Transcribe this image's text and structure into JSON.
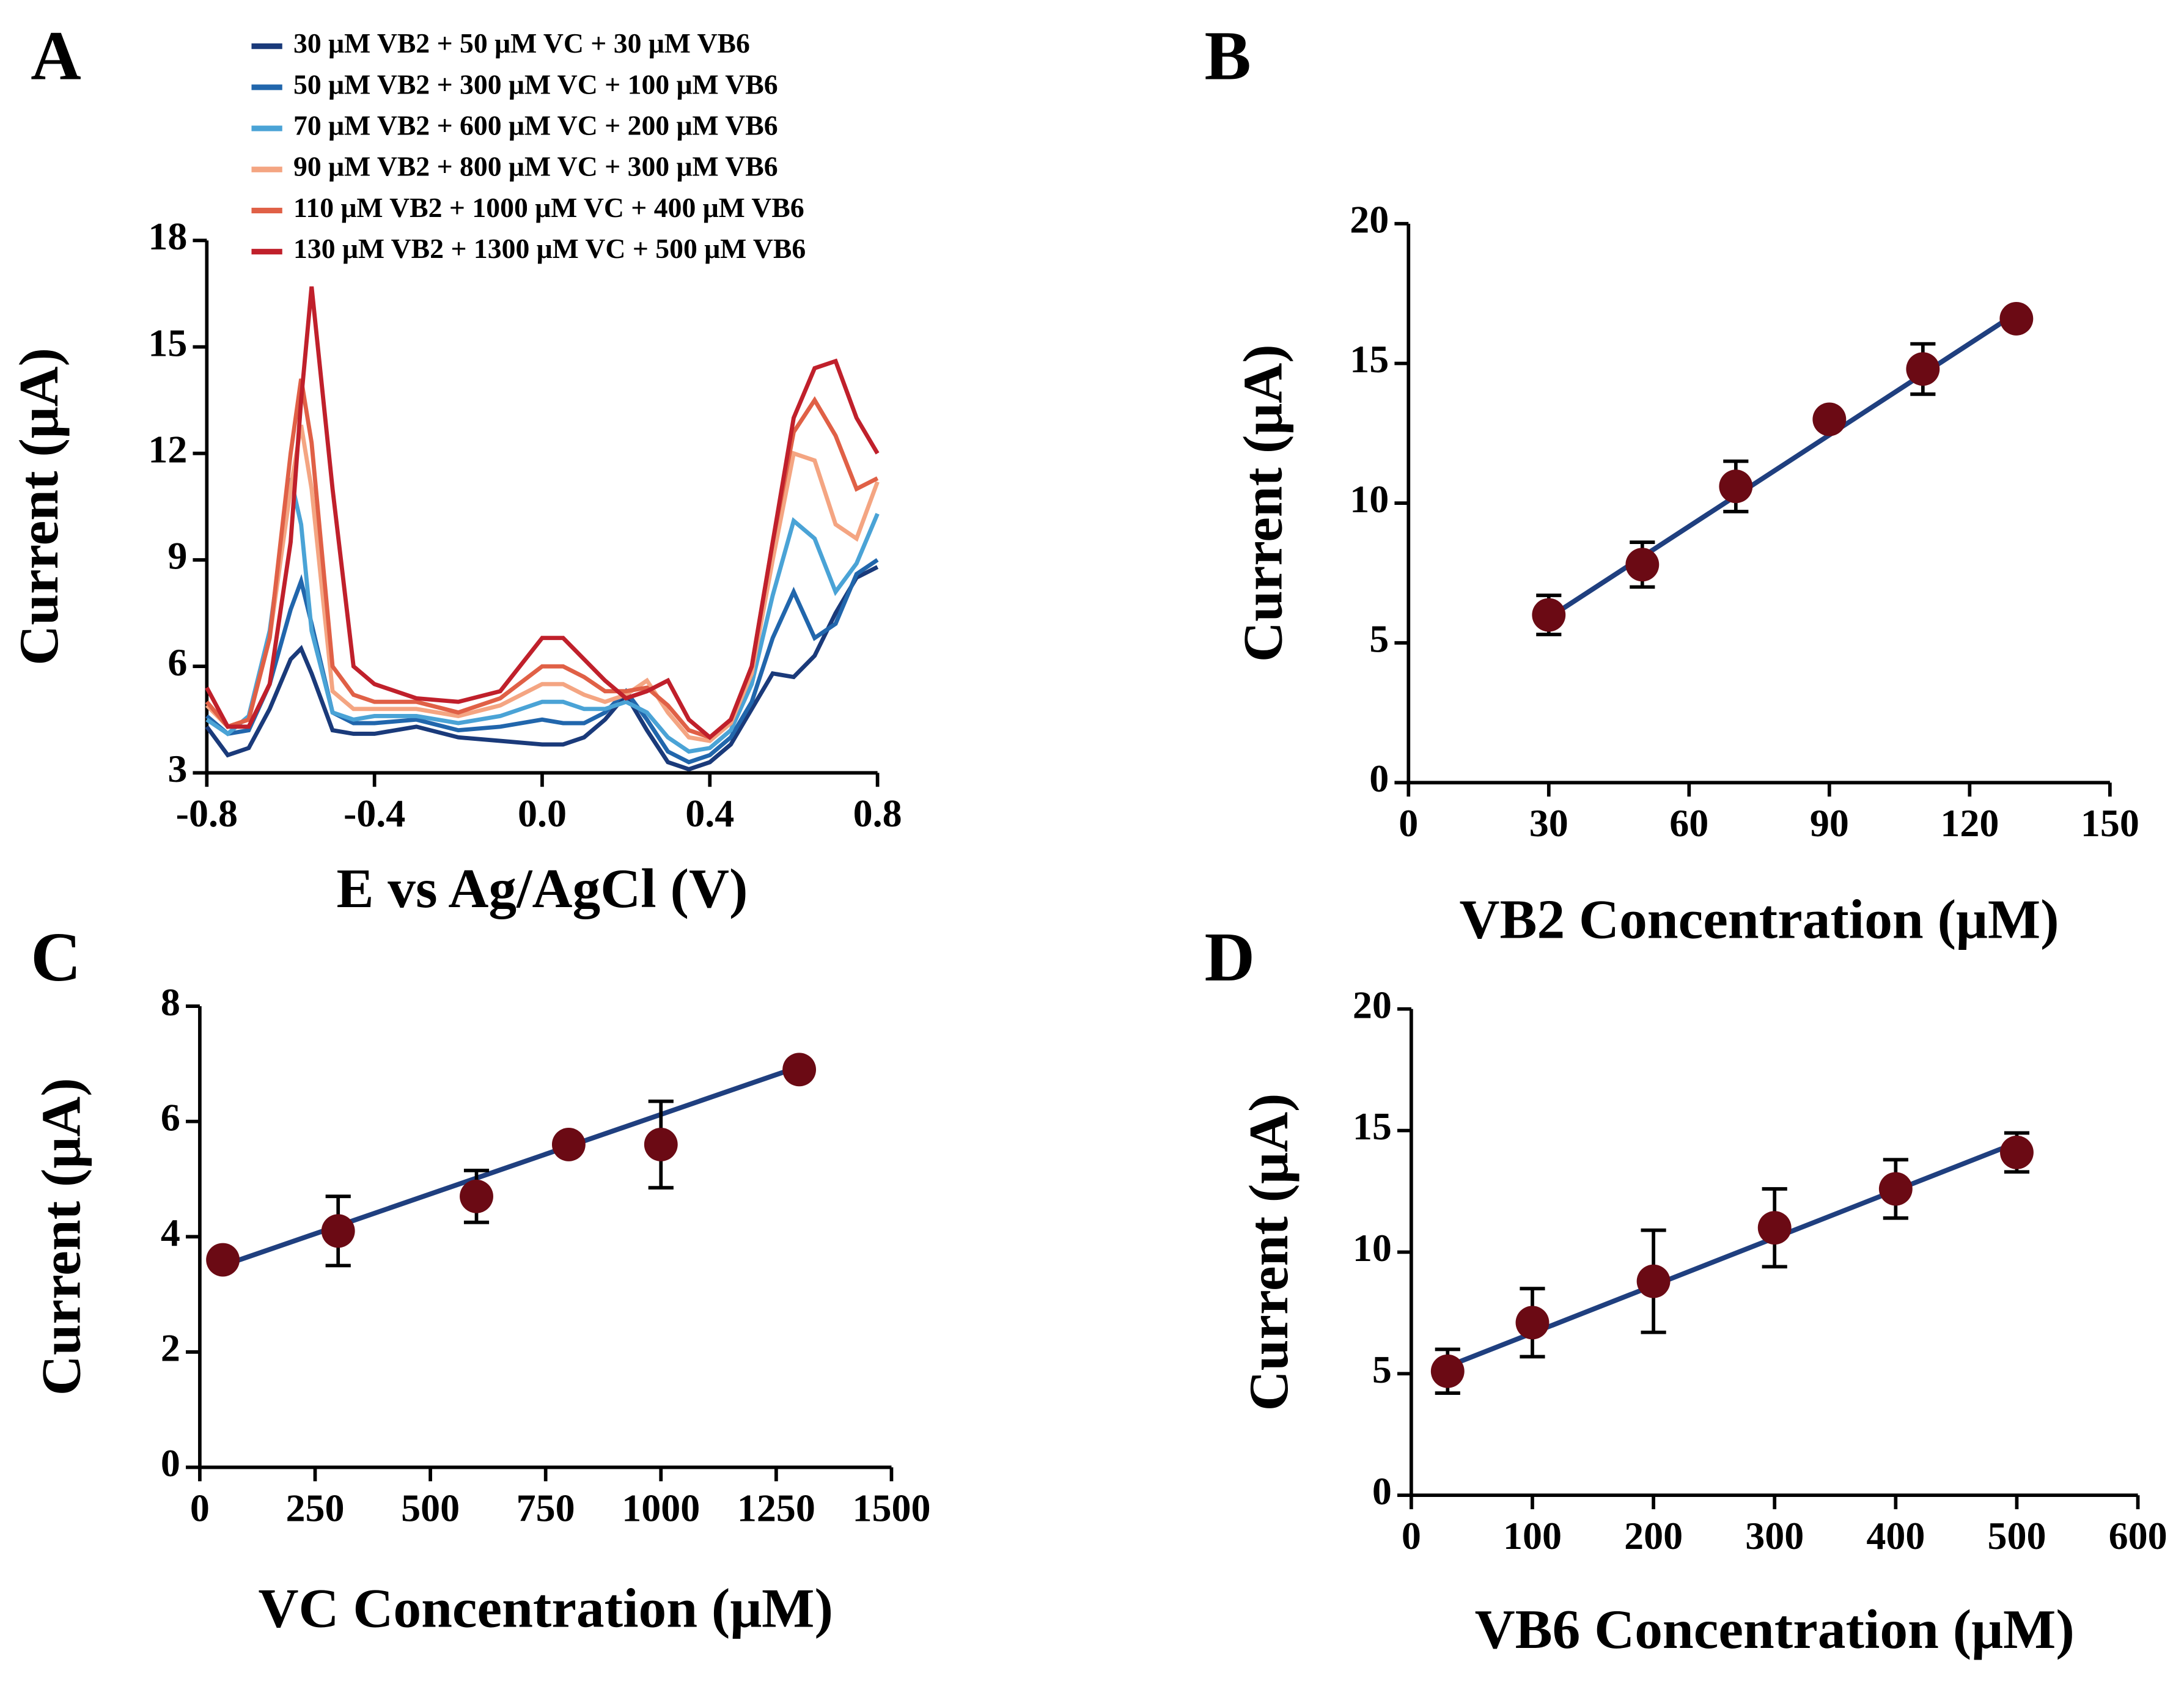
{
  "chart_data": [
    {
      "type": "line",
      "panel": "A",
      "xlabel": "E vs Ag/AgCl (V)",
      "ylabel": "Current (μA)",
      "xlim": [
        -0.8,
        0.8
      ],
      "xticks": [
        -0.8,
        -0.4,
        {
          "value": 0,
          "label": "0.0"
        },
        0.4,
        0.8
      ],
      "ylim": [
        3,
        18
      ],
      "yticks": [
        3,
        6,
        9,
        12,
        15,
        18
      ],
      "x": [
        -0.8,
        -0.75,
        -0.7,
        -0.65,
        -0.6,
        -0.575,
        -0.55,
        -0.5,
        -0.45,
        -0.4,
        -0.3,
        -0.2,
        -0.1,
        0,
        0.05,
        0.1,
        0.15,
        0.2,
        0.25,
        0.3,
        0.35,
        0.4,
        0.45,
        0.5,
        0.55,
        0.6,
        0.65,
        0.7,
        0.75,
        0.8
      ],
      "series": [
        {
          "name": "30 μM VB2 + 50 μM VC + 30 μM VB6",
          "color": "#1a3a7a",
          "values": [
            4.3,
            3.5,
            3.7,
            4.8,
            6.2,
            6.5,
            5.8,
            4.2,
            4.1,
            4.1,
            4.3,
            4.0,
            3.9,
            3.8,
            3.8,
            4.0,
            4.5,
            5.2,
            4.2,
            3.3,
            3.1,
            3.3,
            3.8,
            4.8,
            5.8,
            5.7,
            6.3,
            7.5,
            8.5,
            8.8
          ]
        },
        {
          "name": "50 μM VB2 + 300 μM VC + 100 μM VB6",
          "color": "#2166ac",
          "values": [
            4.6,
            4.1,
            4.2,
            5.5,
            7.6,
            8.4,
            7.2,
            4.7,
            4.4,
            4.4,
            4.5,
            4.2,
            4.3,
            4.5,
            4.4,
            4.4,
            4.7,
            5.3,
            4.5,
            3.6,
            3.3,
            3.5,
            4.0,
            5.0,
            6.8,
            8.1,
            6.8,
            7.2,
            8.6,
            9.0
          ]
        },
        {
          "name": "70 μM VB2 + 600 μM VC + 200 μM VB6",
          "color": "#4aa3d6",
          "values": [
            4.5,
            4.1,
            4.6,
            7.0,
            11.3,
            10.0,
            7.0,
            4.7,
            4.5,
            4.6,
            4.6,
            4.4,
            4.6,
            5.0,
            5.0,
            4.8,
            4.8,
            5.0,
            4.7,
            4.0,
            3.6,
            3.7,
            4.2,
            5.5,
            8.0,
            10.1,
            9.6,
            8.1,
            8.9,
            10.3
          ]
        },
        {
          "name": "90 μM VB2 + 800 μM VC + 300 μM VB6",
          "color": "#f4a582",
          "values": [
            4.9,
            4.3,
            4.5,
            6.8,
            11.0,
            12.8,
            11.0,
            5.3,
            4.8,
            4.8,
            4.8,
            4.6,
            4.9,
            5.5,
            5.5,
            5.2,
            5.0,
            5.2,
            5.6,
            4.7,
            4.0,
            3.9,
            4.4,
            5.8,
            9.0,
            12.0,
            11.8,
            10.0,
            9.6,
            11.2
          ]
        },
        {
          "name": "110 μM VB2 + 1000 μM VC + 400 μM VB6",
          "color": "#e06046",
          "values": [
            5.0,
            4.3,
            4.5,
            6.8,
            12.0,
            14.1,
            12.3,
            6.0,
            5.2,
            5.0,
            5.0,
            4.7,
            5.1,
            6.0,
            6.0,
            5.7,
            5.3,
            5.3,
            5.4,
            4.9,
            4.2,
            4.0,
            4.5,
            6.0,
            9.5,
            12.6,
            13.5,
            12.5,
            11.0,
            11.3
          ]
        },
        {
          "name": "130 μM VB2 + 1300 μM VC + 500 μM VB6",
          "color": "#c0202b",
          "values": [
            5.4,
            4.3,
            4.3,
            5.5,
            9.5,
            13.5,
            16.7,
            11.0,
            6.0,
            5.5,
            5.1,
            5.0,
            5.3,
            6.8,
            6.8,
            6.2,
            5.6,
            5.1,
            5.3,
            5.6,
            4.5,
            4.0,
            4.5,
            6.0,
            9.5,
            13.0,
            14.4,
            14.6,
            13.0,
            12.0
          ]
        }
      ]
    },
    {
      "type": "scatter",
      "panel": "B",
      "xlabel": "VB2 Concentration (μM)",
      "ylabel": "Current (μA)",
      "xlim": [
        0,
        150
      ],
      "xticks": [
        0,
        30,
        60,
        90,
        120,
        150
      ],
      "ylim": [
        0,
        20
      ],
      "yticks": [
        0,
        5,
        10,
        15,
        20
      ],
      "color": "#6b0a14",
      "fit_color": "#1f3f7f",
      "x": [
        30,
        50,
        70,
        90,
        110,
        130
      ],
      "values": [
        6.0,
        7.8,
        10.6,
        13.0,
        14.8,
        16.6
      ],
      "errors": [
        0.7,
        0.8,
        0.9,
        0.3,
        0.9,
        0.3
      ],
      "fit": {
        "x": [
          30,
          130
        ],
        "y": [
          5.9,
          16.8
        ]
      }
    },
    {
      "type": "scatter",
      "panel": "C",
      "xlabel": "VC Concentration (μM)",
      "ylabel": "Current (μA)",
      "xlim": [
        0,
        1500
      ],
      "xticks": [
        0,
        250,
        500,
        750,
        1000,
        1250,
        1500
      ],
      "ylim": [
        0,
        8
      ],
      "yticks": [
        0,
        2,
        4,
        6,
        8
      ],
      "color": "#6b0a14",
      "fit_color": "#1f3f7f",
      "x": [
        50,
        300,
        600,
        800,
        1000,
        1300
      ],
      "values": [
        3.6,
        4.1,
        4.7,
        5.6,
        5.6,
        6.9
      ],
      "errors": [
        0.1,
        0.6,
        0.45,
        0.1,
        0.75,
        0.1
      ],
      "fit": {
        "x": [
          50,
          1300
        ],
        "y": [
          3.5,
          6.95
        ]
      }
    },
    {
      "type": "scatter",
      "panel": "D",
      "xlabel": "VB6 Concentration (μM)",
      "ylabel": "Current (μA)",
      "xlim": [
        0,
        600
      ],
      "xticks": [
        0,
        100,
        200,
        300,
        400,
        500,
        600
      ],
      "ylim": [
        0,
        20
      ],
      "yticks": [
        0,
        5,
        10,
        15,
        20
      ],
      "color": "#6b0a14",
      "fit_color": "#1f3f7f",
      "x": [
        30,
        100,
        200,
        300,
        400,
        500
      ],
      "values": [
        5.1,
        7.1,
        8.8,
        11.0,
        12.6,
        14.1
      ],
      "errors": [
        0.9,
        1.4,
        2.1,
        1.6,
        1.2,
        0.8
      ],
      "fit": {
        "x": [
          30,
          500
        ],
        "y": [
          5.3,
          14.5
        ]
      }
    }
  ]
}
